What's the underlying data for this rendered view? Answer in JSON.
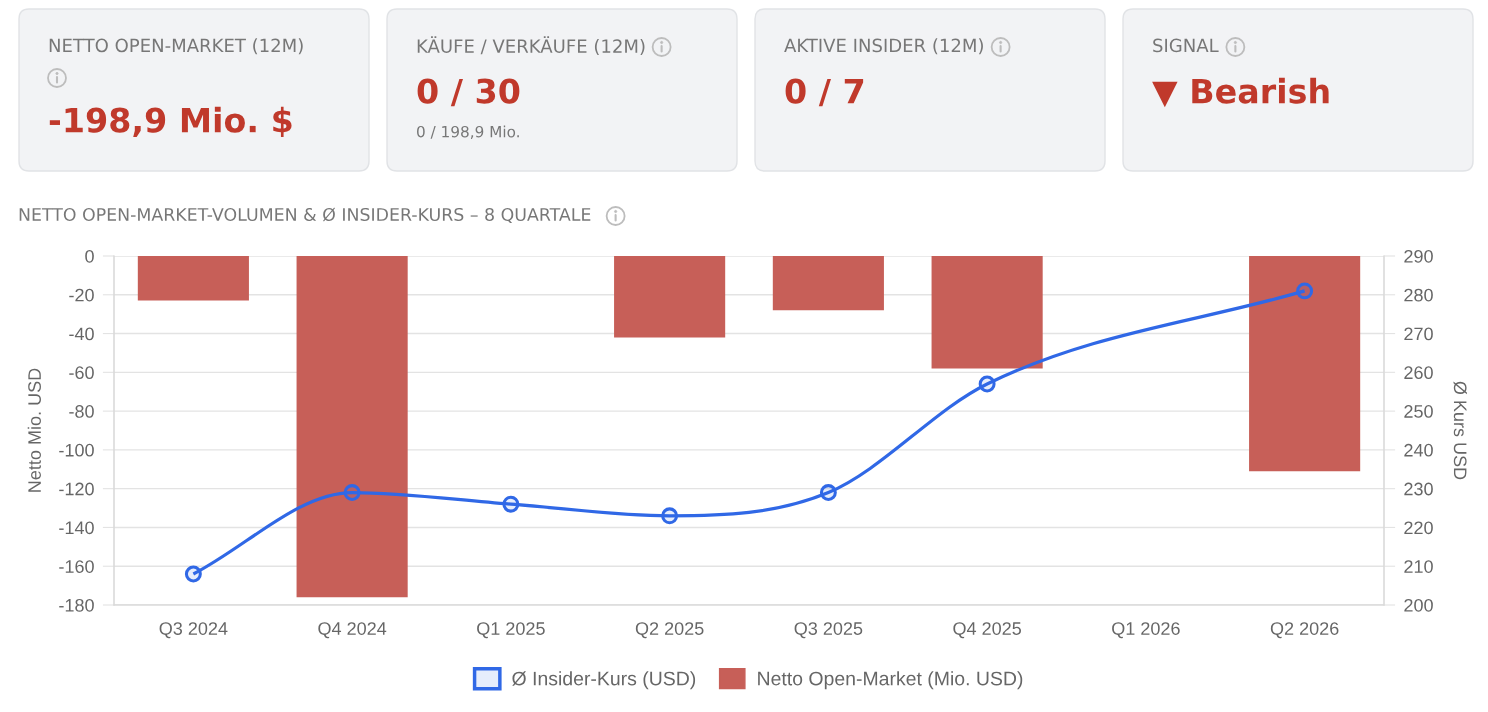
{
  "chart_data": [
    {
      "type": "other",
      "title": "NETTO OPEN-MARKET (12M)",
      "annotations": [
        "-198,9 Mio. $"
      ]
    },
    {
      "type": "other",
      "title": "KÄUFE / VERKÄUFE (12M)",
      "annotations": [
        "0 / 30",
        "0 / 198,9 Mio."
      ]
    },
    {
      "type": "other",
      "title": "AKTIVE INSIDER (12M)",
      "annotations": [
        "0 / 7"
      ]
    },
    {
      "type": "other",
      "title": "SIGNAL",
      "annotations": [
        "▼ Bearish"
      ]
    },
    {
      "type": "bar",
      "title": "NETTO OPEN-MARKET-VOLUMEN & Ø INSIDER-KURS – 8 QUARTALE",
      "categories": [
        "Q3 2024",
        "Q4 2024",
        "Q1 2025",
        "Q2 2025",
        "Q3 2025",
        "Q4 2025",
        "Q1 2026",
        "Q2 2026"
      ],
      "series": [
        {
          "name": "Ø Insider-Kurs (USD)",
          "type": "line",
          "axis": "y2",
          "color": "#3068e6",
          "marker": "circle",
          "line_style": "solid",
          "values": [
            208,
            229,
            226,
            223,
            229,
            257,
            null,
            281
          ]
        },
        {
          "name": "Netto Open-Market (Mio. USD)",
          "type": "bar",
          "color": "#c75f58",
          "values": [
            -23,
            -176,
            null,
            -42,
            -28,
            -58,
            null,
            -111
          ]
        }
      ],
      "ylabel": "Netto Mio. USD",
      "y2label": "Ø Kurs USD",
      "ylim": [
        -180,
        0
      ],
      "yticks": [
        0,
        -20,
        -40,
        -60,
        -80,
        -100,
        -120,
        -140,
        -160,
        -180
      ],
      "y2lim": [
        200,
        290
      ],
      "y2ticks": [
        200,
        210,
        220,
        230,
        240,
        250,
        260,
        270,
        280,
        290
      ],
      "grid": "y",
      "legend": "bottom"
    }
  ]
}
